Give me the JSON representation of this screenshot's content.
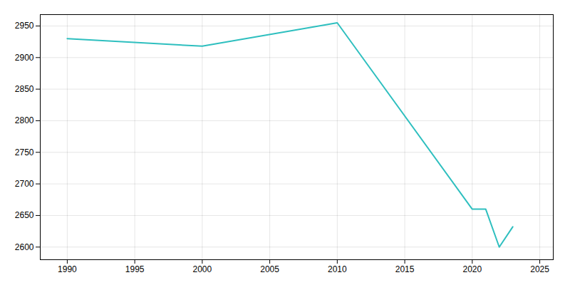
{
  "chart_data": {
    "type": "line",
    "x": [
      1990,
      2000,
      2010,
      2020,
      2021,
      2022,
      2023
    ],
    "values": [
      2930,
      2918,
      2955,
      2660,
      2660,
      2600,
      2632
    ],
    "color": "#2ebfbf",
    "xlim": [
      1988,
      2026
    ],
    "ylim": [
      2580,
      2968
    ],
    "xticks": [
      1990,
      1995,
      2000,
      2005,
      2010,
      2015,
      2020,
      2025
    ],
    "yticks": [
      2600,
      2650,
      2700,
      2750,
      2800,
      2850,
      2900,
      2950
    ],
    "grid": true
  }
}
